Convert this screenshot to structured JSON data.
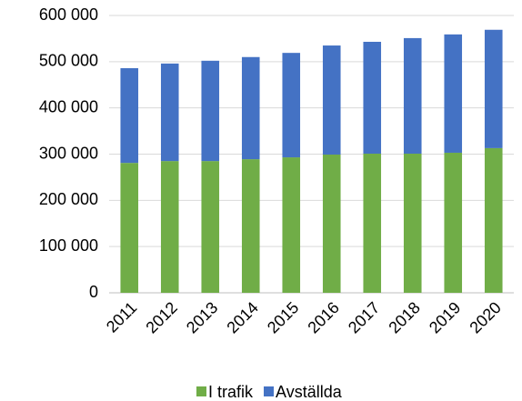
{
  "chart_data": {
    "type": "stacked_bar",
    "categories": [
      "2011",
      "2012",
      "2013",
      "2014",
      "2015",
      "2016",
      "2017",
      "2018",
      "2019",
      "2020"
    ],
    "series": [
      {
        "name": "I trafik",
        "color": "#70ad47",
        "values": [
          281000,
          285000,
          285000,
          289000,
          293000,
          299000,
          301000,
          301000,
          303000,
          313000
        ]
      },
      {
        "name": "Avställda",
        "color": "#4472c4",
        "values": [
          205000,
          211000,
          217000,
          221000,
          226000,
          236000,
          242000,
          250000,
          256000,
          256000
        ]
      }
    ],
    "ylim": [
      0,
      600000
    ],
    "yticks": [
      0,
      {
        "value": 100000,
        "label": "100 000"
      },
      {
        "value": 200000,
        "label": "200 000"
      },
      {
        "value": 300000,
        "label": "300 000"
      },
      {
        "value": 400000,
        "label": "400 000"
      },
      {
        "value": 500000,
        "label": "500 000"
      },
      {
        "value": 600000,
        "label": "600 000"
      }
    ],
    "grid": true,
    "legend": "bottom"
  }
}
